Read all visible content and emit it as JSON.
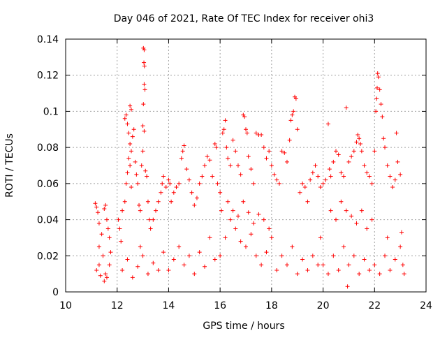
{
  "chart_data": {
    "type": "scatter",
    "title": "Day 046 of 2021, Rate Of TEC Index for receiver ohi3",
    "xlabel": "GPS time / hours",
    "ylabel": "ROTI / TECUs",
    "xlim": [
      10,
      24
    ],
    "ylim": [
      0,
      0.14
    ],
    "xticks": [
      10,
      12,
      14,
      16,
      18,
      20,
      22,
      24
    ],
    "yticks": [
      0,
      0.02,
      0.04,
      0.06,
      0.08,
      0.1,
      0.12,
      0.14
    ],
    "ytick_labels": [
      "0",
      "0.02",
      "0.04",
      "0.06",
      "0.08",
      "0.1",
      "0.12",
      "0.14"
    ],
    "grid": true,
    "marker": "+",
    "color": "#ff0000",
    "series": [
      {
        "points": [
          [
            11.15,
            0.049
          ],
          [
            11.2,
            0.047
          ],
          [
            11.25,
            0.044
          ],
          [
            11.3,
            0.038
          ],
          [
            11.4,
            0.032
          ],
          [
            11.5,
            0.046
          ],
          [
            11.55,
            0.048
          ],
          [
            11.6,
            0.04
          ],
          [
            11.65,
            0.035
          ],
          [
            11.7,
            0.03
          ],
          [
            11.2,
            0.012
          ],
          [
            11.3,
            0.015
          ],
          [
            11.45,
            0.02
          ],
          [
            11.55,
            0.01
          ],
          [
            11.6,
            0.008
          ],
          [
            11.7,
            0.015
          ],
          [
            11.75,
            0.022
          ],
          [
            11.3,
            0.025
          ],
          [
            11.35,
            0.009
          ],
          [
            11.5,
            0.006
          ],
          [
            12.05,
            0.04
          ],
          [
            12.1,
            0.035
          ],
          [
            12.15,
            0.028
          ],
          [
            12.2,
            0.045
          ],
          [
            12.3,
            0.05
          ],
          [
            12.35,
            0.06
          ],
          [
            12.4,
            0.066
          ],
          [
            12.45,
            0.074
          ],
          [
            12.5,
            0.07
          ],
          [
            12.55,
            0.058
          ],
          [
            12.3,
            0.096
          ],
          [
            12.35,
            0.098
          ],
          [
            12.4,
            0.093
          ],
          [
            12.45,
            0.088
          ],
          [
            12.5,
            0.082
          ],
          [
            12.55,
            0.078
          ],
          [
            12.6,
            0.086
          ],
          [
            12.65,
            0.09
          ],
          [
            12.5,
            0.103
          ],
          [
            12.55,
            0.101
          ],
          [
            12.7,
            0.072
          ],
          [
            12.75,
            0.065
          ],
          [
            12.8,
            0.06
          ],
          [
            12.85,
            0.048
          ],
          [
            12.9,
            0.045
          ],
          [
            12.95,
            0.07
          ],
          [
            13.0,
            0.078
          ],
          [
            13.02,
            0.104
          ],
          [
            13.05,
            0.115
          ],
          [
            13.08,
            0.112
          ],
          [
            13.02,
            0.135
          ],
          [
            13.05,
            0.134
          ],
          [
            13.04,
            0.127
          ],
          [
            13.06,
            0.125
          ],
          [
            13.0,
            0.092
          ],
          [
            13.05,
            0.089
          ],
          [
            13.1,
            0.067
          ],
          [
            13.15,
            0.064
          ],
          [
            13.2,
            0.05
          ],
          [
            13.25,
            0.04
          ],
          [
            12.2,
            0.012
          ],
          [
            12.4,
            0.018
          ],
          [
            12.6,
            0.008
          ],
          [
            12.8,
            0.014
          ],
          [
            13.0,
            0.02
          ],
          [
            13.2,
            0.01
          ],
          [
            13.4,
            0.016
          ],
          [
            13.6,
            0.012
          ],
          [
            13.8,
            0.022
          ],
          [
            12.9,
            0.025
          ],
          [
            13.3,
            0.035
          ],
          [
            13.4,
            0.04
          ],
          [
            13.5,
            0.045
          ],
          [
            13.6,
            0.05
          ],
          [
            13.7,
            0.055
          ],
          [
            13.75,
            0.06
          ],
          [
            13.8,
            0.064
          ],
          [
            13.9,
            0.058
          ],
          [
            14.0,
            0.062
          ],
          [
            14.05,
            0.06
          ],
          [
            14.1,
            0.05
          ],
          [
            14.2,
            0.055
          ],
          [
            14.3,
            0.058
          ],
          [
            14.4,
            0.06
          ],
          [
            14.5,
            0.074
          ],
          [
            14.55,
            0.078
          ],
          [
            14.6,
            0.081
          ],
          [
            14.7,
            0.068
          ],
          [
            14.8,
            0.062
          ],
          [
            14.9,
            0.055
          ],
          [
            14.0,
            0.012
          ],
          [
            14.2,
            0.018
          ],
          [
            14.4,
            0.025
          ],
          [
            14.6,
            0.015
          ],
          [
            14.8,
            0.02
          ],
          [
            15.0,
            0.01
          ],
          [
            15.2,
            0.022
          ],
          [
            15.4,
            0.014
          ],
          [
            15.6,
            0.03
          ],
          [
            15.8,
            0.018
          ],
          [
            15.0,
            0.048
          ],
          [
            15.1,
            0.052
          ],
          [
            15.2,
            0.06
          ],
          [
            15.3,
            0.064
          ],
          [
            15.4,
            0.07
          ],
          [
            15.5,
            0.075
          ],
          [
            15.6,
            0.073
          ],
          [
            15.7,
            0.064
          ],
          [
            15.8,
            0.082
          ],
          [
            15.85,
            0.08
          ],
          [
            15.9,
            0.06
          ],
          [
            16.0,
            0.055
          ],
          [
            16.05,
            0.045
          ],
          [
            16.1,
            0.088
          ],
          [
            16.15,
            0.09
          ],
          [
            16.2,
            0.095
          ],
          [
            16.25,
            0.08
          ],
          [
            16.3,
            0.074
          ],
          [
            16.4,
            0.07
          ],
          [
            16.5,
            0.084
          ],
          [
            16.6,
            0.078
          ],
          [
            16.7,
            0.07
          ],
          [
            16.8,
            0.065
          ],
          [
            16.9,
            0.098
          ],
          [
            16.95,
            0.097
          ],
          [
            17.0,
            0.09
          ],
          [
            17.05,
            0.088
          ],
          [
            17.1,
            0.075
          ],
          [
            17.2,
            0.068
          ],
          [
            17.3,
            0.06
          ],
          [
            16.0,
            0.02
          ],
          [
            16.2,
            0.03
          ],
          [
            16.4,
            0.04
          ],
          [
            16.6,
            0.035
          ],
          [
            16.8,
            0.028
          ],
          [
            17.0,
            0.025
          ],
          [
            17.2,
            0.032
          ],
          [
            17.4,
            0.02
          ],
          [
            17.6,
            0.015
          ],
          [
            17.8,
            0.022
          ],
          [
            16.3,
            0.05
          ],
          [
            16.5,
            0.045
          ],
          [
            16.7,
            0.042
          ],
          [
            16.9,
            0.05
          ],
          [
            17.1,
            0.044
          ],
          [
            17.3,
            0.038
          ],
          [
            17.5,
            0.043
          ],
          [
            17.7,
            0.04
          ],
          [
            17.9,
            0.035
          ],
          [
            18.0,
            0.03
          ],
          [
            17.4,
            0.088
          ],
          [
            17.5,
            0.087
          ],
          [
            17.6,
            0.087
          ],
          [
            17.7,
            0.08
          ],
          [
            17.8,
            0.074
          ],
          [
            17.9,
            0.078
          ],
          [
            18.0,
            0.07
          ],
          [
            18.1,
            0.065
          ],
          [
            18.2,
            0.062
          ],
          [
            18.3,
            0.06
          ],
          [
            18.4,
            0.078
          ],
          [
            18.5,
            0.077
          ],
          [
            18.6,
            0.072
          ],
          [
            18.7,
            0.084
          ],
          [
            18.75,
            0.095
          ],
          [
            18.8,
            0.098
          ],
          [
            18.85,
            0.1
          ],
          [
            18.9,
            0.108
          ],
          [
            18.95,
            0.107
          ],
          [
            19.0,
            0.09
          ],
          [
            18.2,
            0.012
          ],
          [
            18.4,
            0.02
          ],
          [
            18.6,
            0.015
          ],
          [
            18.8,
            0.025
          ],
          [
            19.0,
            0.01
          ],
          [
            19.2,
            0.018
          ],
          [
            19.4,
            0.012
          ],
          [
            19.6,
            0.02
          ],
          [
            19.8,
            0.015
          ],
          [
            19.9,
            0.03
          ],
          [
            19.1,
            0.055
          ],
          [
            19.2,
            0.06
          ],
          [
            19.3,
            0.058
          ],
          [
            19.4,
            0.05
          ],
          [
            19.5,
            0.062
          ],
          [
            19.6,
            0.066
          ],
          [
            19.7,
            0.07
          ],
          [
            19.8,
            0.064
          ],
          [
            19.9,
            0.058
          ],
          [
            20.0,
            0.06
          ],
          [
            20.1,
            0.062
          ],
          [
            20.2,
            0.093
          ],
          [
            20.25,
            0.068
          ],
          [
            20.3,
            0.064
          ],
          [
            20.4,
            0.072
          ],
          [
            20.5,
            0.078
          ],
          [
            20.6,
            0.076
          ],
          [
            20.7,
            0.066
          ],
          [
            20.8,
            0.064
          ],
          [
            20.9,
            0.102
          ],
          [
            20.0,
            0.015
          ],
          [
            20.2,
            0.01
          ],
          [
            20.4,
            0.02
          ],
          [
            20.6,
            0.012
          ],
          [
            20.8,
            0.025
          ],
          [
            21.0,
            0.015
          ],
          [
            21.2,
            0.02
          ],
          [
            21.4,
            0.01
          ],
          [
            21.6,
            0.018
          ],
          [
            21.8,
            0.012
          ],
          [
            20.3,
            0.045
          ],
          [
            20.5,
            0.04
          ],
          [
            20.7,
            0.05
          ],
          [
            20.9,
            0.045
          ],
          [
            21.1,
            0.042
          ],
          [
            21.3,
            0.038
          ],
          [
            21.5,
            0.045
          ],
          [
            21.7,
            0.035
          ],
          [
            21.9,
            0.04
          ],
          [
            20.95,
            0.003
          ],
          [
            21.0,
            0.072
          ],
          [
            21.1,
            0.075
          ],
          [
            21.2,
            0.078
          ],
          [
            21.3,
            0.083
          ],
          [
            21.35,
            0.087
          ],
          [
            21.4,
            0.085
          ],
          [
            21.45,
            0.082
          ],
          [
            21.5,
            0.078
          ],
          [
            21.6,
            0.07
          ],
          [
            21.7,
            0.066
          ],
          [
            21.8,
            0.064
          ],
          [
            21.9,
            0.06
          ],
          [
            22.0,
            0.078
          ],
          [
            22.05,
            0.1
          ],
          [
            22.08,
            0.107
          ],
          [
            22.1,
            0.113
          ],
          [
            22.12,
            0.121
          ],
          [
            22.15,
            0.119
          ],
          [
            22.2,
            0.112
          ],
          [
            22.25,
            0.104
          ],
          [
            22.3,
            0.097
          ],
          [
            22.35,
            0.085
          ],
          [
            22.4,
            0.08
          ],
          [
            22.5,
            0.07
          ],
          [
            22.6,
            0.064
          ],
          [
            22.7,
            0.058
          ],
          [
            22.8,
            0.062
          ],
          [
            22.85,
            0.088
          ],
          [
            22.9,
            0.072
          ],
          [
            23.0,
            0.065
          ],
          [
            22.0,
            0.015
          ],
          [
            22.2,
            0.01
          ],
          [
            22.4,
            0.02
          ],
          [
            22.6,
            0.012
          ],
          [
            22.8,
            0.018
          ],
          [
            23.0,
            0.025
          ],
          [
            23.1,
            0.015
          ],
          [
            23.15,
            0.01
          ],
          [
            22.5,
            0.03
          ],
          [
            23.05,
            0.033
          ]
        ]
      }
    ]
  }
}
